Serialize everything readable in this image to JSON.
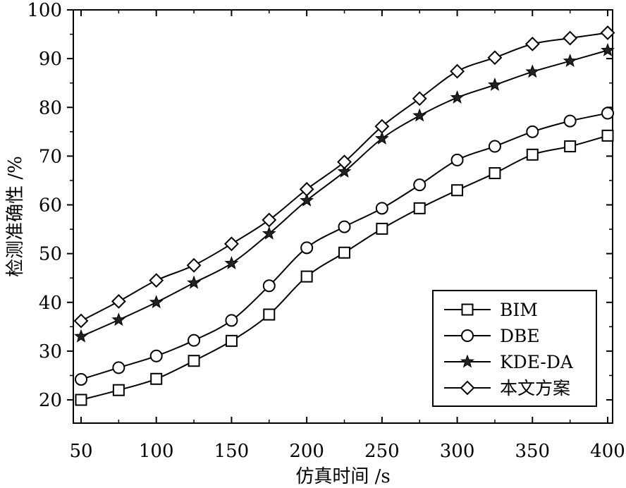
{
  "chart_data": {
    "type": "line",
    "xlabel": "仿真时间 /s",
    "ylabel": "检测准确性 /%",
    "xlim": [
      45,
      405
    ],
    "ylim": [
      15,
      100
    ],
    "xticks": [
      50,
      100,
      150,
      200,
      250,
      300,
      350,
      400
    ],
    "yticks": [
      20,
      30,
      40,
      50,
      60,
      70,
      80,
      90,
      100
    ],
    "x_tick_labels": [
      "50",
      "100",
      "150",
      "200",
      "250",
      "300",
      "350",
      "400"
    ],
    "y_tick_labels": [
      "20",
      "30",
      "40",
      "50",
      "60",
      "70",
      "80",
      "90",
      "100"
    ],
    "legend_position": "bottom-right",
    "series": [
      {
        "name": "BIM",
        "marker": "square",
        "x": [
          50,
          75,
          100,
          125,
          150,
          175,
          200,
          225,
          250,
          275,
          300,
          325,
          350,
          375,
          400
        ],
        "values": [
          20.0,
          22.0,
          24.3,
          28.0,
          32.1,
          37.5,
          45.3,
          50.2,
          55.1,
          59.3,
          63.0,
          66.5,
          70.3,
          72.0,
          74.2
        ]
      },
      {
        "name": "DBE",
        "marker": "circle",
        "x": [
          50,
          75,
          100,
          125,
          150,
          175,
          200,
          225,
          250,
          275,
          300,
          325,
          350,
          375,
          400
        ],
        "values": [
          24.2,
          26.6,
          29.0,
          32.2,
          36.3,
          43.4,
          51.2,
          55.5,
          59.3,
          64.1,
          69.2,
          72.0,
          75.0,
          77.2,
          78.8
        ]
      },
      {
        "name": "KDE-DA",
        "marker": "star",
        "x": [
          50,
          75,
          100,
          125,
          150,
          175,
          200,
          225,
          250,
          275,
          300,
          325,
          350,
          375,
          400
        ],
        "values": [
          33.0,
          36.4,
          40.0,
          44.0,
          48.0,
          54.1,
          60.9,
          66.8,
          73.6,
          78.3,
          82.0,
          84.6,
          87.3,
          89.5,
          91.7
        ]
      },
      {
        "name": "本文方案",
        "marker": "diamond",
        "x": [
          50,
          75,
          100,
          125,
          150,
          175,
          200,
          225,
          250,
          275,
          300,
          325,
          350,
          375,
          400
        ],
        "values": [
          36.2,
          40.2,
          44.5,
          47.6,
          52.0,
          56.9,
          63.2,
          68.8,
          76.1,
          81.8,
          87.4,
          90.2,
          93.0,
          94.2,
          95.3
        ]
      }
    ]
  }
}
